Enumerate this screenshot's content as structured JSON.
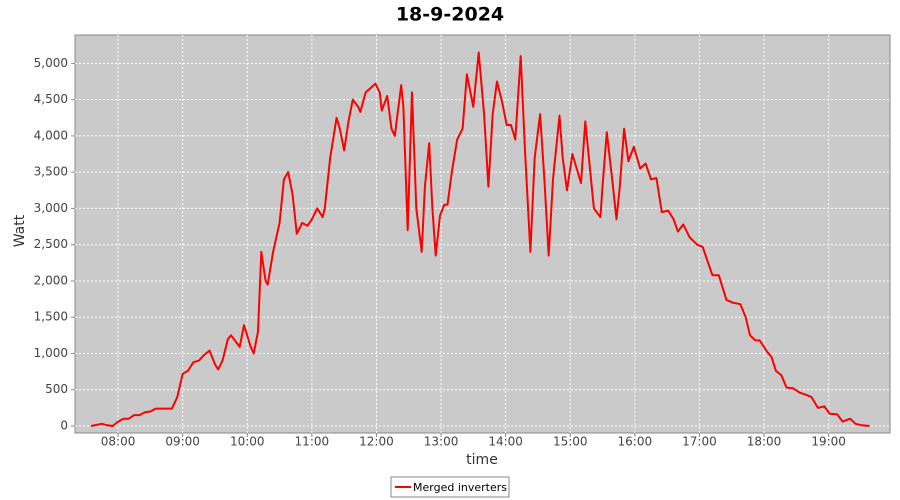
{
  "chart_data": {
    "type": "line",
    "title": "18-9-2024",
    "x_label": "time",
    "y_label": "Watt",
    "x": [
      "07:35",
      "07:45",
      "07:50",
      "07:55",
      "08:00",
      "08:05",
      "08:10",
      "08:15",
      "08:20",
      "08:25",
      "08:30",
      "08:35",
      "08:40",
      "08:45",
      "08:50",
      "08:55",
      "09:00",
      "09:05",
      "09:10",
      "09:15",
      "09:20",
      "09:25",
      "09:30",
      "09:33",
      "09:37",
      "09:42",
      "09:45",
      "09:50",
      "09:53",
      "09:57",
      "10:03",
      "10:06",
      "10:10",
      "10:13",
      "10:17",
      "10:19",
      "10:24",
      "10:30",
      "10:34",
      "10:38",
      "10:42",
      "10:46",
      "10:51",
      "10:56",
      "11:00",
      "11:05",
      "11:10",
      "11:12",
      "11:17",
      "11:23",
      "11:26",
      "11:30",
      "11:34",
      "11:38",
      "11:43",
      "11:45",
      "11:50",
      "11:59",
      "12:03",
      "12:05",
      "12:10",
      "12:14",
      "12:17",
      "12:23",
      "12:25",
      "12:29",
      "12:33",
      "12:37",
      "12:42",
      "12:45",
      "12:49",
      "12:52",
      "12:55",
      "12:59",
      "13:03",
      "13:06",
      "13:10",
      "13:15",
      "13:20",
      "13:24",
      "13:30",
      "13:35",
      "13:40",
      "13:44",
      "13:48",
      "13:52",
      "13:57",
      "14:01",
      "14:05",
      "14:09",
      "14:14",
      "14:18",
      "14:23",
      "14:27",
      "14:32",
      "14:36",
      "14:40",
      "14:44",
      "14:50",
      "14:53",
      "14:57",
      "15:02",
      "15:06",
      "15:10",
      "15:14",
      "15:18",
      "15:22",
      "15:28",
      "15:30",
      "15:34",
      "15:39",
      "15:43",
      "15:46",
      "15:50",
      "15:54",
      "15:59",
      "16:05",
      "16:10",
      "16:15",
      "16:20",
      "16:25",
      "16:31",
      "16:36",
      "16:40",
      "16:45",
      "16:51",
      "16:58",
      "17:03",
      "17:08",
      "17:12",
      "17:18",
      "17:25",
      "17:31",
      "17:38",
      "17:43",
      "17:47",
      "17:52",
      "17:56",
      "18:03",
      "18:07",
      "18:11",
      "18:16",
      "18:21",
      "18:27",
      "18:33",
      "18:39",
      "18:44",
      "18:50",
      "18:56",
      "19:01",
      "19:08",
      "19:13",
      "19:20",
      "19:25",
      "19:31",
      "19:38"
    ],
    "series": [
      {
        "name": "Merged inverters",
        "color": "#ff0000",
        "values": [
          0,
          30,
          10,
          0,
          60,
          100,
          100,
          150,
          150,
          190,
          200,
          240,
          240,
          240,
          240,
          400,
          720,
          760,
          880,
          900,
          980,
          1040,
          850,
          780,
          900,
          1200,
          1250,
          1150,
          1090,
          1390,
          1100,
          1000,
          1300,
          2400,
          2000,
          1950,
          2400,
          2800,
          3400,
          3500,
          3200,
          2650,
          2800,
          2760,
          2850,
          3000,
          2880,
          3000,
          3700,
          4250,
          4100,
          3800,
          4200,
          4500,
          4400,
          4330,
          4600,
          4720,
          4600,
          4350,
          4550,
          4100,
          4000,
          4700,
          4400,
          2700,
          4600,
          3000,
          2400,
          3300,
          3900,
          3000,
          2350,
          2900,
          3050,
          3050,
          3500,
          3950,
          4100,
          4850,
          4400,
          5150,
          4300,
          3300,
          4300,
          4750,
          4450,
          4150,
          4150,
          3950,
          5100,
          3800,
          2400,
          3700,
          4300,
          3400,
          2350,
          3400,
          4280,
          3700,
          3250,
          3750,
          3550,
          3350,
          4200,
          3600,
          3000,
          2880,
          3300,
          4050,
          3400,
          2850,
          3300,
          4100,
          3650,
          3850,
          3550,
          3620,
          3400,
          3420,
          2950,
          2970,
          2850,
          2680,
          2780,
          2600,
          2500,
          2470,
          2250,
          2080,
          2080,
          1740,
          1700,
          1680,
          1500,
          1250,
          1180,
          1180,
          1020,
          950,
          760,
          700,
          530,
          520,
          460,
          430,
          400,
          250,
          270,
          170,
          160,
          60,
          100,
          30,
          10,
          0
        ]
      }
    ],
    "xlim": [
      "07:20",
      "19:57"
    ],
    "xticks": [
      "08:00",
      "09:00",
      "10:00",
      "11:00",
      "12:00",
      "13:00",
      "14:00",
      "15:00",
      "16:00",
      "17:00",
      "18:00",
      "19:00"
    ],
    "ylim": [
      0,
      5350
    ],
    "yticks": [
      0,
      500,
      {
        "value": 1000,
        "label": "1,000"
      },
      {
        "value": 1500,
        "label": "1,500"
      },
      {
        "value": 2000,
        "label": "2,000"
      },
      {
        "value": 2500,
        "label": "2,500"
      },
      {
        "value": 3000,
        "label": "3,000"
      },
      {
        "value": 3500,
        "label": "3,500"
      },
      {
        "value": 4000,
        "label": "4,000"
      },
      {
        "value": 4500,
        "label": "4,500"
      },
      {
        "value": 5000,
        "label": "5,000"
      }
    ],
    "grid": true,
    "legend": "bottom"
  }
}
